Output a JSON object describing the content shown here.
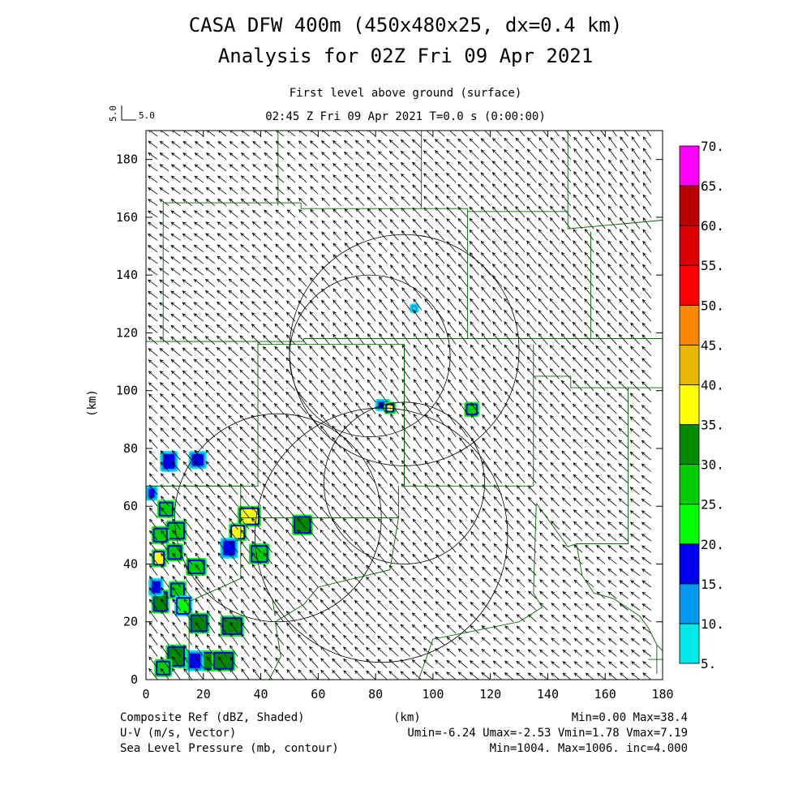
{
  "title_line1": "CASA DFW 400m (450x480x25, dx=0.4 km)",
  "title_line2": "Analysis for 02Z Fri 09 Apr 2021",
  "subtitle_line1": "First level above ground (surface)",
  "subtitle_line2": "02:45 Z Fri 09 Apr 2021   T=0.0 s (0:00:00)",
  "vector_scale": {
    "label_vertical": "5.0",
    "label_horizontal": "5.0"
  },
  "footer": {
    "left_1": "Composite Ref (dBZ, Shaded)",
    "left_2": "U-V (m/s, Vector)",
    "left_3": "Sea Level Pressure (mb, contour)",
    "center_1": "(km)",
    "right_1": "Min=0.00 Max=38.4",
    "right_2": "Umin=-6.24 Umax=-2.53 Vmin=1.78 Vmax=7.19",
    "right_3": "Min=1004. Max=1006. inc=4.000"
  },
  "chart_data": {
    "type": "heatmap",
    "xlabel": "(km)",
    "ylabel": "(km)",
    "xlim": [
      0,
      180
    ],
    "ylim": [
      0,
      190
    ],
    "x_ticks": [
      0,
      20,
      40,
      60,
      80,
      100,
      120,
      140,
      160,
      180
    ],
    "y_ticks": [
      0,
      20,
      40,
      60,
      80,
      100,
      120,
      140,
      160,
      180
    ],
    "colorbar": {
      "levels": [
        "5.",
        "10.",
        "15.",
        "20.",
        "25.",
        "30.",
        "35.",
        "40.",
        "45.",
        "50.",
        "55.",
        "60.",
        "65.",
        "70."
      ],
      "colors": [
        "#00e8e8",
        "#0099ee",
        "#0000ee",
        "#00ff00",
        "#00cc00",
        "#008800",
        "#ffff00",
        "#e6b800",
        "#ff8800",
        "#ff0000",
        "#dd0000",
        "#bb0000",
        "#ff00ff"
      ]
    },
    "wind_field": {
      "u_range": [
        -6.24,
        -2.53
      ],
      "v_range": [
        1.78,
        7.19
      ],
      "spacing_km": 4
    },
    "range_rings": [
      {
        "center": [
          78,
          112
        ],
        "radius_km": 28
      },
      {
        "center": [
          90,
          114
        ],
        "radius_km": 40
      },
      {
        "center": [
          90,
          68
        ],
        "radius_km": 28
      },
      {
        "center": [
          46,
          56
        ],
        "radius_km": 36
      },
      {
        "center": [
          82,
          50
        ],
        "radius_km": 44
      }
    ],
    "county_lines": [
      [
        [
          46,
          190
        ],
        [
          46,
          164
        ]
      ],
      [
        [
          96,
          190
        ],
        [
          96,
          163
        ]
      ],
      [
        [
          147,
          190
        ],
        [
          147,
          156
        ],
        [
          180,
          159
        ]
      ],
      [
        [
          6,
          165
        ],
        [
          54,
          165
        ],
        [
          54,
          163
        ],
        [
          112,
          163
        ],
        [
          112,
          162
        ],
        [
          147,
          162
        ]
      ],
      [
        [
          6,
          165
        ],
        [
          6,
          117
        ],
        [
          55,
          117
        ],
        [
          55,
          118
        ],
        [
          112,
          118
        ],
        [
          112,
          162
        ]
      ],
      [
        [
          112,
          118
        ],
        [
          155,
          118
        ],
        [
          155,
          155
        ]
      ],
      [
        [
          155,
          118
        ],
        [
          180,
          118
        ]
      ],
      [
        [
          0,
          117
        ],
        [
          39,
          117
        ],
        [
          39,
          67
        ],
        [
          0,
          67
        ]
      ],
      [
        [
          39,
          116
        ],
        [
          90,
          116
        ],
        [
          90,
          67
        ]
      ],
      [
        [
          90,
          116
        ],
        [
          90,
          67
        ],
        [
          135,
          67
        ]
      ],
      [
        [
          135,
          116
        ],
        [
          135,
          67
        ]
      ],
      [
        [
          135,
          105
        ],
        [
          148,
          105
        ],
        [
          148,
          101
        ],
        [
          168,
          101
        ],
        [
          168,
          47
        ],
        [
          155,
          47
        ],
        [
          150,
          47
        ],
        [
          147,
          46
        ],
        [
          136,
          61
        ]
      ],
      [
        [
          168,
          101
        ],
        [
          180,
          101
        ]
      ],
      [
        [
          33,
          67
        ],
        [
          33,
          56
        ],
        [
          88,
          56
        ],
        [
          88,
          67
        ]
      ],
      [
        [
          0,
          67
        ],
        [
          33,
          67
        ]
      ],
      [
        [
          33,
          56
        ],
        [
          33,
          35
        ],
        [
          15,
          27
        ],
        [
          15,
          0
        ]
      ],
      [
        [
          88,
          56
        ],
        [
          85,
          38
        ],
        [
          60,
          32
        ],
        [
          55,
          26
        ],
        [
          45,
          20
        ],
        [
          47,
          8
        ],
        [
          43,
          0
        ]
      ],
      [
        [
          136,
          61
        ],
        [
          135,
          30
        ],
        [
          138,
          25
        ],
        [
          130,
          20
        ],
        [
          100,
          14
        ],
        [
          95,
          0
        ]
      ],
      [
        [
          150,
          47
        ],
        [
          152,
          36
        ],
        [
          156,
          30
        ],
        [
          163,
          28
        ],
        [
          172,
          22
        ],
        [
          175,
          18
        ],
        [
          178,
          12
        ],
        [
          180,
          10
        ]
      ],
      [
        [
          175,
          7
        ],
        [
          180,
          7
        ]
      ],
      [
        [
          178,
          12
        ],
        [
          178,
          2
        ]
      ],
      [
        [
          44,
          28
        ],
        [
          45,
          22
        ]
      ]
    ],
    "reflectivity_cells": [
      {
        "x": 6,
        "y": 73,
        "w": 4,
        "h": 5,
        "dbz": 15
      },
      {
        "x": 16,
        "y": 74,
        "w": 4,
        "h": 4,
        "dbz": 15
      },
      {
        "x": 5,
        "y": 57,
        "w": 4,
        "h": 4,
        "dbz": 25
      },
      {
        "x": 33,
        "y": 54,
        "w": 6,
        "h": 5,
        "dbz": 35
      },
      {
        "x": 30,
        "y": 49,
        "w": 4,
        "h": 4,
        "dbz": 35
      },
      {
        "x": 27,
        "y": 43,
        "w": 4,
        "h": 5,
        "dbz": 15
      },
      {
        "x": 37,
        "y": 41,
        "w": 5,
        "h": 5,
        "dbz": 25
      },
      {
        "x": 52,
        "y": 51,
        "w": 5,
        "h": 5,
        "dbz": 30
      },
      {
        "x": 8,
        "y": 49,
        "w": 5,
        "h": 5,
        "dbz": 25
      },
      {
        "x": 3,
        "y": 48,
        "w": 4,
        "h": 4,
        "dbz": 25
      },
      {
        "x": 8,
        "y": 42,
        "w": 4,
        "h": 4,
        "dbz": 25
      },
      {
        "x": 3,
        "y": 40,
        "w": 3,
        "h": 4,
        "dbz": 35
      },
      {
        "x": 15,
        "y": 37,
        "w": 5,
        "h": 4,
        "dbz": 25
      },
      {
        "x": 9,
        "y": 29,
        "w": 4,
        "h": 4,
        "dbz": 25
      },
      {
        "x": 11,
        "y": 23,
        "w": 4,
        "h": 5,
        "dbz": 20
      },
      {
        "x": 3,
        "y": 24,
        "w": 4,
        "h": 6,
        "dbz": 30
      },
      {
        "x": 16,
        "y": 17,
        "w": 5,
        "h": 5,
        "dbz": 30
      },
      {
        "x": 27,
        "y": 16,
        "w": 6,
        "h": 5,
        "dbz": 30
      },
      {
        "x": 8,
        "y": 5,
        "w": 5,
        "h": 6,
        "dbz": 30
      },
      {
        "x": 20,
        "y": 4,
        "w": 5,
        "h": 5,
        "dbz": 30
      },
      {
        "x": 24,
        "y": 4,
        "w": 6,
        "h": 5,
        "dbz": 30
      },
      {
        "x": 4,
        "y": 2,
        "w": 4,
        "h": 4,
        "dbz": 25
      },
      {
        "x": 15,
        "y": 4,
        "w": 4,
        "h": 5,
        "dbz": 15
      },
      {
        "x": 2,
        "y": 30,
        "w": 3,
        "h": 4,
        "dbz": 15
      },
      {
        "x": 1,
        "y": 63,
        "w": 2,
        "h": 3,
        "dbz": 15
      },
      {
        "x": 81,
        "y": 94,
        "w": 3,
        "h": 2,
        "dbz": 15
      },
      {
        "x": 84,
        "y": 93,
        "w": 2,
        "h": 2,
        "dbz": 35
      },
      {
        "x": 112,
        "y": 92,
        "w": 3,
        "h": 3,
        "dbz": 25
      },
      {
        "x": 93,
        "y": 128,
        "w": 1,
        "h": 1,
        "dbz": 5
      }
    ]
  }
}
